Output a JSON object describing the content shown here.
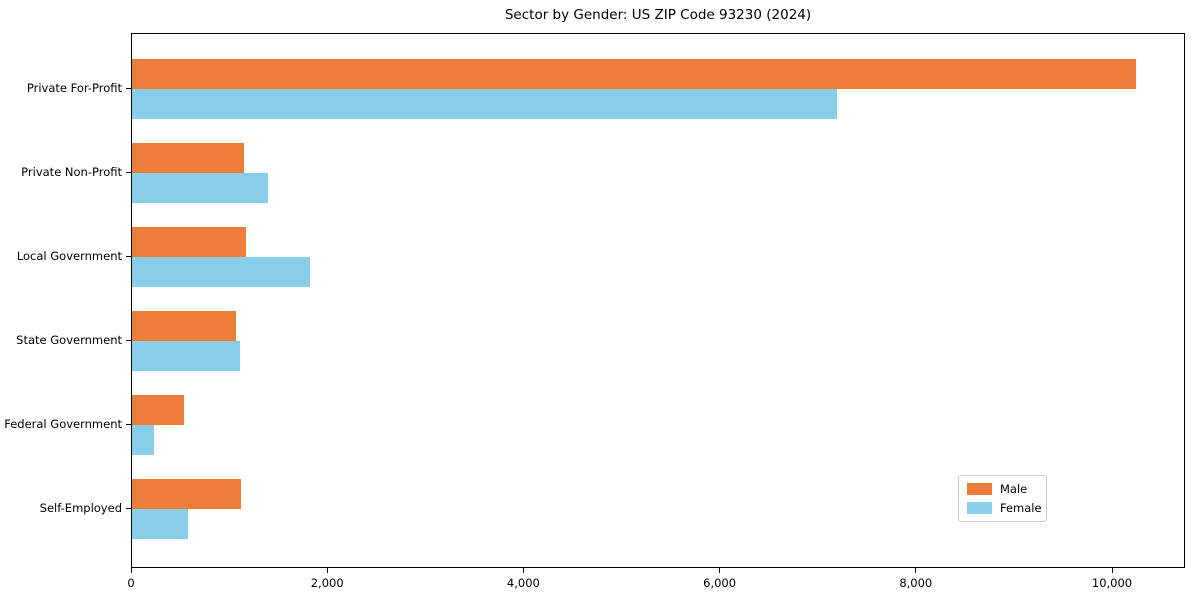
{
  "chart_data": {
    "type": "bar",
    "orientation": "horizontal",
    "title": "Sector by Gender: US ZIP Code 93230 (2024)",
    "categories": [
      "Private For-Profit",
      "Private Non-Profit",
      "Local Government",
      "State Government",
      "Federal Government",
      "Self-Employed"
    ],
    "series": [
      {
        "name": "Male",
        "color": "#ed7d3a",
        "values": [
          10235,
          1140,
          1165,
          1060,
          530,
          1110
        ]
      },
      {
        "name": "Female",
        "color": "#87ceeb",
        "values": [
          7190,
          1385,
          1815,
          1100,
          225,
          570
        ]
      }
    ],
    "xlabel": "",
    "ylabel": "",
    "xlim": [
      0,
      10744
    ],
    "xticks": [
      0,
      2000,
      4000,
      6000,
      8000,
      10000
    ],
    "xtick_labels": [
      "0",
      "2,000",
      "4,000",
      "6,000",
      "8,000",
      "10,000"
    ],
    "grid": false,
    "legend": {
      "position": "lower right",
      "entries": [
        "Male",
        "Female"
      ]
    }
  }
}
